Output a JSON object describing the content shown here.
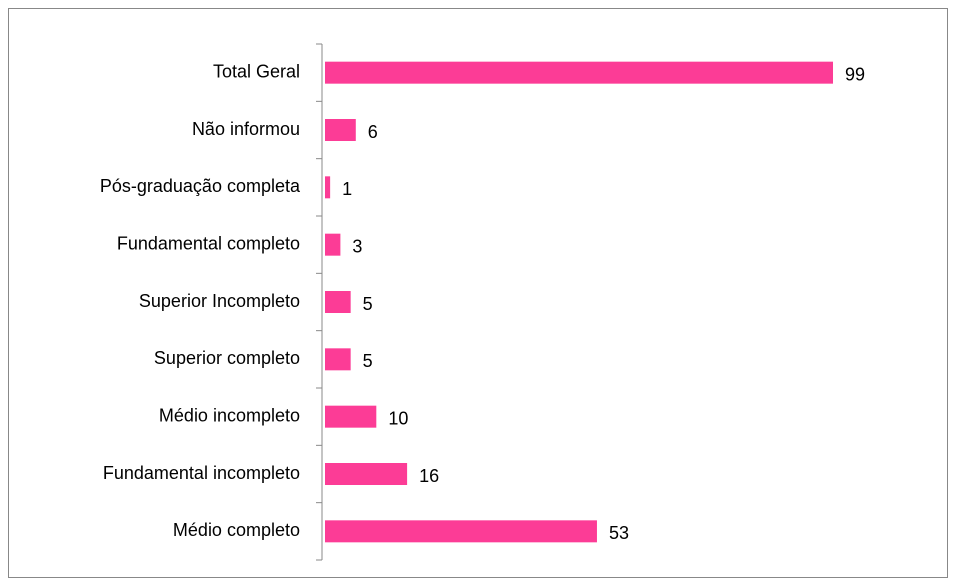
{
  "chart_data": {
    "type": "bar",
    "orientation": "horizontal",
    "categories": [
      "Total Geral",
      "Não informou",
      "Pós-graduação completa",
      "Fundamental completo",
      "Superior Incompleto",
      "Superior completo",
      "Médio incompleto",
      "Fundamental incompleto",
      "Médio completo"
    ],
    "values": [
      99,
      6,
      1,
      3,
      5,
      5,
      10,
      16,
      53
    ],
    "color": "#fc3c96"
  }
}
